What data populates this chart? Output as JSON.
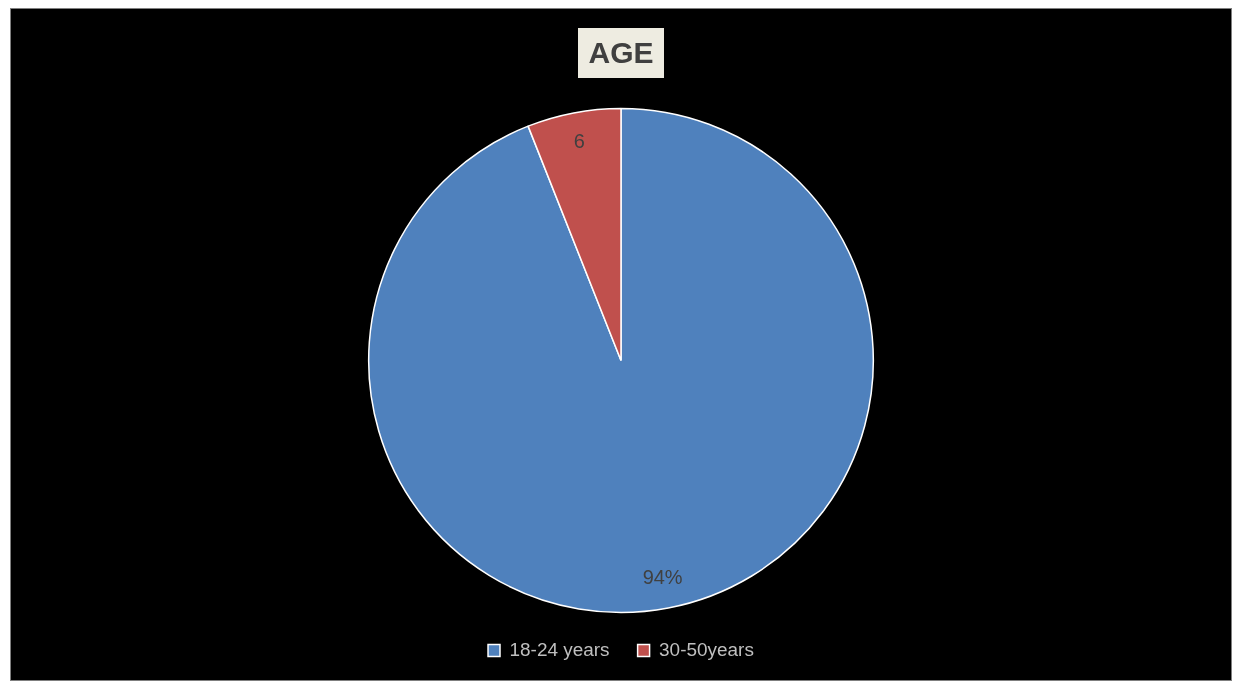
{
  "chart_data": {
    "type": "pie",
    "title": "AGE",
    "categories": [
      "18-24 years",
      "30-50years"
    ],
    "values": [
      94,
      6
    ],
    "colors": [
      "#4f81bd",
      "#c0504d"
    ],
    "value_labels": [
      "94%",
      "6"
    ],
    "legend": "bottom"
  }
}
